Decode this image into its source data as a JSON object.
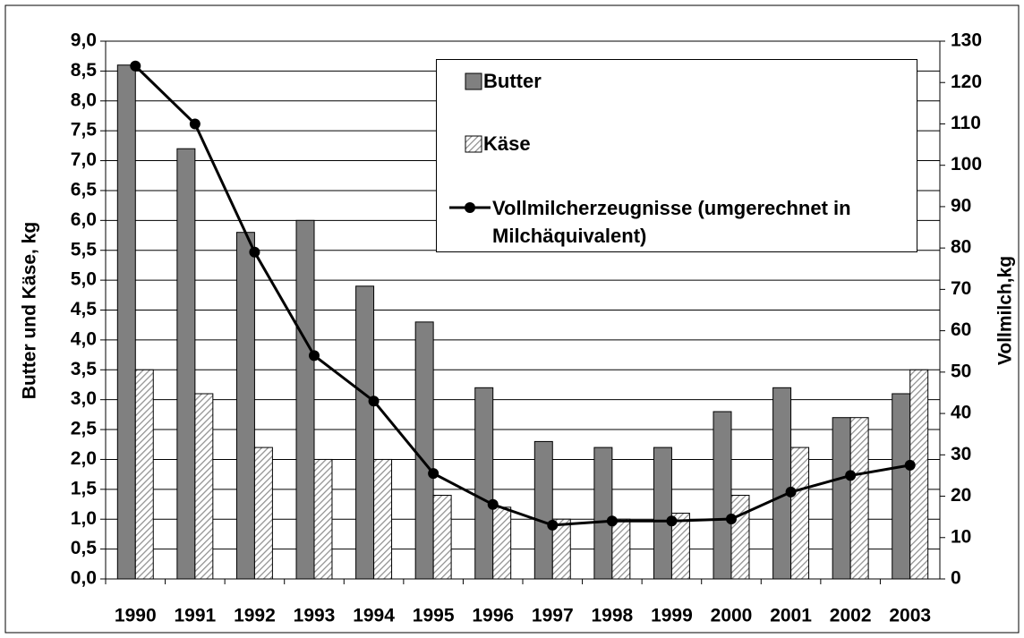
{
  "chart_data": {
    "type": "bar",
    "categories": [
      "1990",
      "1991",
      "1992",
      "1993",
      "1994",
      "1995",
      "1996",
      "1997",
      "1998",
      "1999",
      "2000",
      "2001",
      "2002",
      "2003"
    ],
    "ylabel": "Butter und Käse, kg",
    "y2label": "Vollmilch,kg",
    "ylim": [
      0,
      9
    ],
    "yticks": [
      {
        "value": 0,
        "label": "0,0"
      },
      {
        "value": 0.5,
        "label": "0,5"
      },
      {
        "value": 1,
        "label": "1,0"
      },
      {
        "value": 1.5,
        "label": "1,5"
      },
      {
        "value": 2,
        "label": "2,0"
      },
      {
        "value": 2.5,
        "label": "2,5"
      },
      {
        "value": 3,
        "label": "3,0"
      },
      {
        "value": 3.5,
        "label": "3,5"
      },
      {
        "value": 4,
        "label": "4,0"
      },
      {
        "value": 4.5,
        "label": "4,5"
      },
      {
        "value": 5,
        "label": "5,0"
      },
      {
        "value": 5.5,
        "label": "5,5"
      },
      {
        "value": 6,
        "label": "6,0"
      },
      {
        "value": 6.5,
        "label": "6,5"
      },
      {
        "value": 7,
        "label": "7,0"
      },
      {
        "value": 7.5,
        "label": "7,5"
      },
      {
        "value": 8,
        "label": "8,0"
      },
      {
        "value": 8.5,
        "label": "8,5"
      },
      {
        "value": 9,
        "label": "9,0"
      }
    ],
    "y2lim": [
      0,
      130
    ],
    "y2ticks": [
      0,
      10,
      20,
      30,
      40,
      50,
      60,
      70,
      80,
      90,
      100,
      110,
      120,
      130
    ],
    "grid": true,
    "series": [
      {
        "name": "Butter",
        "color": "#808080",
        "values": [
          8.6,
          7.2,
          5.8,
          6.0,
          4.9,
          4.3,
          3.2,
          2.3,
          2.2,
          2.2,
          2.8,
          3.2,
          2.7,
          3.1
        ]
      },
      {
        "name": "Käse",
        "color": "#909090",
        "values": [
          3.5,
          3.1,
          2.2,
          2.0,
          2.0,
          1.4,
          1.2,
          1.0,
          1.0,
          1.1,
          1.4,
          2.2,
          2.7,
          3.5
        ]
      },
      {
        "name": "Vollmilcherzeugnisse (umgerechnet in Milchäquivalent)",
        "type": "line",
        "axis": "y2",
        "color": "#000000",
        "values": [
          124,
          110,
          79,
          54,
          43,
          25.5,
          18,
          13,
          14,
          14,
          14.5,
          21,
          25,
          27.5
        ]
      }
    ]
  }
}
